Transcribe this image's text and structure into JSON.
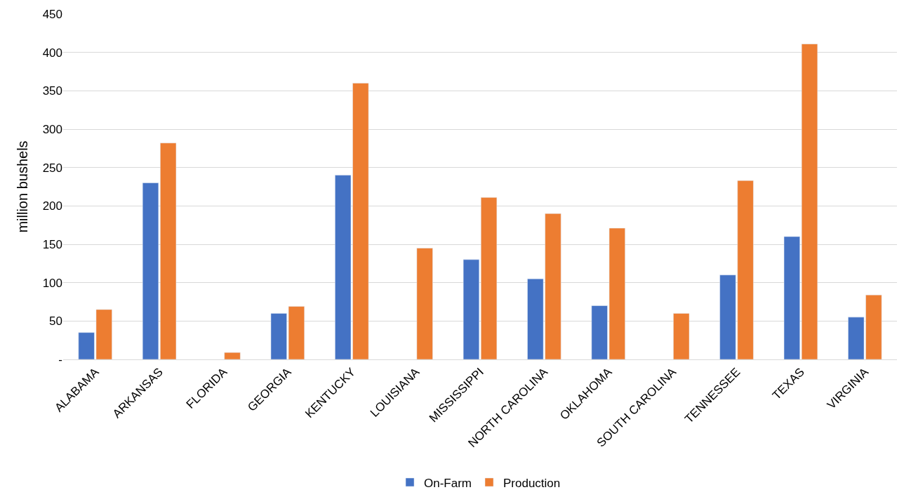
{
  "chart_data": {
    "type": "bar",
    "ylabel": "million bushels",
    "categories": [
      "ALABAMA",
      "ARKANSAS",
      "FLORIDA",
      "GEORGIA",
      "KENTUCKY",
      "LOUISIANA",
      "MISSISSIPPI",
      "NORTH CAROLINA",
      "OKLAHOMA",
      "SOUTH CAROLINA",
      "TENNESSEE",
      "TEXAS",
      "VIRGINIA"
    ],
    "series": [
      {
        "name": "On-Farm",
        "color": "#4472c4",
        "values": [
          35,
          230,
          null,
          60,
          240,
          null,
          130,
          105,
          70,
          null,
          110,
          160,
          55
        ]
      },
      {
        "name": "Production",
        "color": "#ed7d31",
        "values": [
          65,
          282,
          9,
          69,
          360,
          145,
          211,
          190,
          171,
          60,
          233,
          411,
          84
        ]
      }
    ],
    "ylim": [
      0,
      450
    ],
    "yticks": [
      {
        "value": 0,
        "label": "-"
      },
      50,
      100,
      150,
      200,
      250,
      300,
      350,
      400,
      450
    ],
    "grid": "y",
    "legend": "bottom"
  }
}
